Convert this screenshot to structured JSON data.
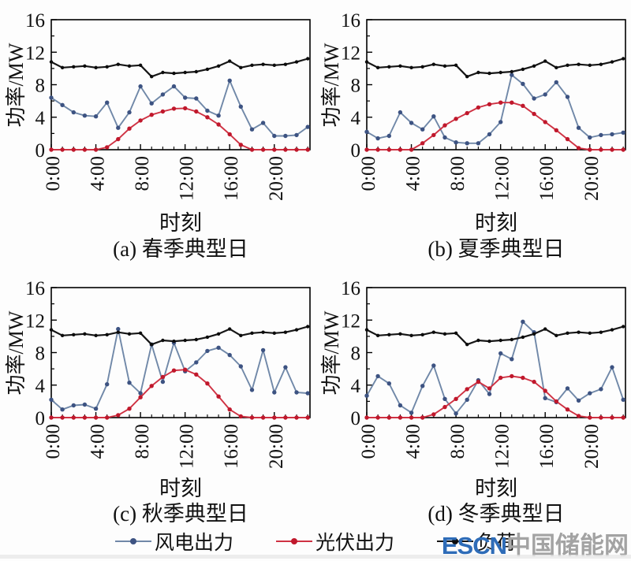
{
  "figure": {
    "ylabel": "功率/MW",
    "xlabel": "时刻",
    "x_tick_labels": [
      "0:00",
      "4:00",
      "8:00",
      "12:00",
      "16:00",
      "20:00"
    ],
    "y_tick_labels": [
      "0",
      "4",
      "8",
      "12",
      "16"
    ]
  },
  "chart_data": [
    {
      "id": "a",
      "type": "line",
      "title": "(a) 春季典型日",
      "xlabel": "时刻",
      "ylabel": "功率/MW",
      "xlim": [
        0,
        23.2
      ],
      "ylim": [
        0,
        16
      ],
      "x_major_ticks": [
        0,
        4,
        8,
        12,
        16,
        20
      ],
      "x_tick_labels": [
        "0:00",
        "4:00",
        "8:00",
        "12:00",
        "16:00",
        "20:00"
      ],
      "y_major_ticks": [
        0,
        4,
        8,
        12,
        16
      ],
      "y_minor_ticks": [
        2,
        6,
        10,
        14
      ],
      "hours": [
        0,
        1,
        2,
        3,
        4,
        5,
        6,
        7,
        8,
        9,
        10,
        11,
        12,
        13,
        14,
        15,
        16,
        17,
        18,
        19,
        20,
        21,
        22,
        23
      ],
      "series": [
        {
          "name": "风电出力",
          "color": "#7088a8",
          "marker_color": "#3d5382",
          "values": [
            6.4,
            5.5,
            4.6,
            4.2,
            4.1,
            5.8,
            2.7,
            4.6,
            7.8,
            5.7,
            6.8,
            7.8,
            6.4,
            6.3,
            4.8,
            4.2,
            8.5,
            5.3,
            2.5,
            3.3,
            1.7,
            1.7,
            1.8,
            2.8
          ]
        },
        {
          "name": "光伏出力",
          "color": "#cf3243",
          "marker_color": "#c0182c",
          "values": [
            0,
            0,
            0,
            0,
            0,
            0.3,
            1.3,
            2.6,
            3.6,
            4.3,
            4.7,
            5.05,
            5.1,
            4.7,
            4.0,
            3.1,
            1.9,
            0.6,
            0,
            0,
            0,
            0,
            0,
            0
          ]
        },
        {
          "name": "负荷",
          "color": "#161616",
          "marker_color": "#0c0c0c",
          "values": [
            10.8,
            10.1,
            10.2,
            10.3,
            10.1,
            10.2,
            10.5,
            10.3,
            10.4,
            9.0,
            9.5,
            9.4,
            9.5,
            9.6,
            9.9,
            10.3,
            10.9,
            10.1,
            10.4,
            10.5,
            10.4,
            10.5,
            10.8,
            11.2
          ]
        }
      ]
    },
    {
      "id": "b",
      "type": "line",
      "title": "(b) 夏季典型日",
      "xlabel": "时刻",
      "ylabel": "功率/MW",
      "xlim": [
        0,
        23.2
      ],
      "ylim": [
        0,
        16
      ],
      "x_major_ticks": [
        0,
        4,
        8,
        12,
        16,
        20
      ],
      "x_tick_labels": [
        "0:00",
        "4:00",
        "8:00",
        "12:00",
        "16:00",
        "20:00"
      ],
      "y_major_ticks": [
        0,
        4,
        8,
        12,
        16
      ],
      "y_minor_ticks": [
        2,
        6,
        10,
        14
      ],
      "hours": [
        0,
        1,
        2,
        3,
        4,
        5,
        6,
        7,
        8,
        9,
        10,
        11,
        12,
        13,
        14,
        15,
        16,
        17,
        18,
        19,
        20,
        21,
        22,
        23
      ],
      "series": [
        {
          "name": "风电出力",
          "color": "#7088a8",
          "marker_color": "#3d5382",
          "values": [
            2.2,
            1.4,
            1.7,
            4.6,
            3.3,
            2.5,
            4.1,
            1.5,
            0.9,
            0.8,
            0.8,
            1.9,
            3.4,
            9.2,
            8.1,
            6.3,
            6.8,
            8.3,
            6.5,
            2.7,
            1.5,
            1.8,
            1.9,
            2.1
          ]
        },
        {
          "name": "光伏出力",
          "color": "#cf3243",
          "marker_color": "#c0182c",
          "values": [
            0,
            0,
            0,
            0,
            0,
            0.8,
            1.8,
            3.0,
            3.8,
            4.5,
            5.2,
            5.6,
            5.8,
            5.8,
            5.4,
            4.4,
            3.4,
            2.4,
            1.3,
            0.2,
            0,
            0,
            0,
            0
          ]
        },
        {
          "name": "负荷",
          "color": "#161616",
          "marker_color": "#0c0c0c",
          "values": [
            10.8,
            10.1,
            10.2,
            10.3,
            10.1,
            10.2,
            10.5,
            10.3,
            10.4,
            9.0,
            9.5,
            9.4,
            9.5,
            9.6,
            9.9,
            10.3,
            10.9,
            10.1,
            10.4,
            10.5,
            10.4,
            10.5,
            10.8,
            11.2
          ]
        }
      ]
    },
    {
      "id": "c",
      "type": "line",
      "title": "(c) 秋季典型日",
      "xlabel": "时刻",
      "ylabel": "功率/MW",
      "xlim": [
        0,
        23.2
      ],
      "ylim": [
        0,
        16
      ],
      "x_major_ticks": [
        0,
        4,
        8,
        12,
        16,
        20
      ],
      "x_tick_labels": [
        "0:00",
        "4:00",
        "8:00",
        "12:00",
        "16:00",
        "20:00"
      ],
      "y_major_ticks": [
        0,
        4,
        8,
        12,
        16
      ],
      "y_minor_ticks": [
        2,
        6,
        10,
        14
      ],
      "hours": [
        0,
        1,
        2,
        3,
        4,
        5,
        6,
        7,
        8,
        9,
        10,
        11,
        12,
        13,
        14,
        15,
        16,
        17,
        18,
        19,
        20,
        21,
        22,
        23
      ],
      "series": [
        {
          "name": "风电出力",
          "color": "#7088a8",
          "marker_color": "#3d5382",
          "values": [
            2.2,
            1.0,
            1.5,
            1.6,
            1.1,
            4.1,
            10.9,
            4.3,
            3.0,
            9.0,
            4.4,
            9.2,
            5.7,
            6.8,
            8.2,
            8.6,
            7.7,
            6.3,
            3.4,
            8.3,
            3.1,
            6.2,
            3.1,
            3.0
          ]
        },
        {
          "name": "光伏出力",
          "color": "#cf3243",
          "marker_color": "#c0182c",
          "values": [
            0,
            0,
            0,
            0,
            0,
            0,
            0.3,
            1.1,
            2.5,
            3.9,
            5.0,
            5.8,
            5.9,
            5.3,
            4.2,
            2.6,
            1.0,
            0.15,
            0,
            0,
            0,
            0,
            0,
            0
          ]
        },
        {
          "name": "负荷",
          "color": "#161616",
          "marker_color": "#0c0c0c",
          "values": [
            10.8,
            10.1,
            10.2,
            10.3,
            10.1,
            10.2,
            10.5,
            10.3,
            10.4,
            9.0,
            9.5,
            9.4,
            9.5,
            9.6,
            9.9,
            10.3,
            10.9,
            10.1,
            10.4,
            10.5,
            10.4,
            10.5,
            10.8,
            11.2
          ]
        }
      ]
    },
    {
      "id": "d",
      "type": "line",
      "title": "(d) 冬季典型日",
      "xlabel": "时刻",
      "ylabel": "功率/MW",
      "xlim": [
        0,
        23.2
      ],
      "ylim": [
        0,
        16
      ],
      "x_major_ticks": [
        0,
        4,
        8,
        12,
        16,
        20
      ],
      "x_tick_labels": [
        "0:00",
        "4:00",
        "8:00",
        "12:00",
        "16:00",
        "20:00"
      ],
      "y_major_ticks": [
        0,
        4,
        8,
        12,
        16
      ],
      "y_minor_ticks": [
        2,
        6,
        10,
        14
      ],
      "hours": [
        0,
        1,
        2,
        3,
        4,
        5,
        6,
        7,
        8,
        9,
        10,
        11,
        12,
        13,
        14,
        15,
        16,
        17,
        18,
        19,
        20,
        21,
        22,
        23
      ],
      "series": [
        {
          "name": "风电出力",
          "color": "#7088a8",
          "marker_color": "#3d5382",
          "values": [
            2.7,
            5.1,
            4.2,
            1.5,
            0.6,
            3.9,
            6.4,
            2.3,
            0.5,
            2.2,
            4.6,
            2.9,
            7.9,
            7.2,
            11.8,
            10.5,
            2.4,
            1.9,
            3.6,
            2.1,
            3.0,
            3.5,
            6.2,
            2.2
          ]
        },
        {
          "name": "光伏出力",
          "color": "#cf3243",
          "marker_color": "#c0182c",
          "values": [
            0,
            0,
            0,
            0,
            0,
            0,
            0.4,
            1.3,
            2.3,
            3.5,
            4.4,
            3.6,
            4.9,
            5.1,
            4.9,
            4.4,
            3.3,
            2.0,
            1.0,
            0.2,
            0,
            0,
            0,
            0
          ]
        },
        {
          "name": "负荷",
          "color": "#161616",
          "marker_color": "#0c0c0c",
          "values": [
            10.8,
            10.1,
            10.2,
            10.3,
            10.1,
            10.2,
            10.5,
            10.3,
            10.4,
            9.0,
            9.5,
            9.4,
            9.5,
            9.6,
            9.9,
            10.3,
            10.9,
            10.1,
            10.4,
            10.5,
            10.4,
            10.5,
            10.8,
            11.2
          ]
        }
      ]
    }
  ],
  "legend": {
    "items": [
      {
        "label": "风电出力",
        "line_color": "#7088a8",
        "dot_color": "#3d5382"
      },
      {
        "label": "光伏出力",
        "line_color": "#cf3243",
        "dot_color": "#c0182c"
      },
      {
        "label": "负荷",
        "line_color": "#161616",
        "dot_color": "#0c0c0c"
      }
    ]
  },
  "watermark": {
    "brand": "ESCN",
    "brand_color": "#2e6cb8",
    "site": "中国储能网",
    "site_color": "#a3a3a3"
  }
}
